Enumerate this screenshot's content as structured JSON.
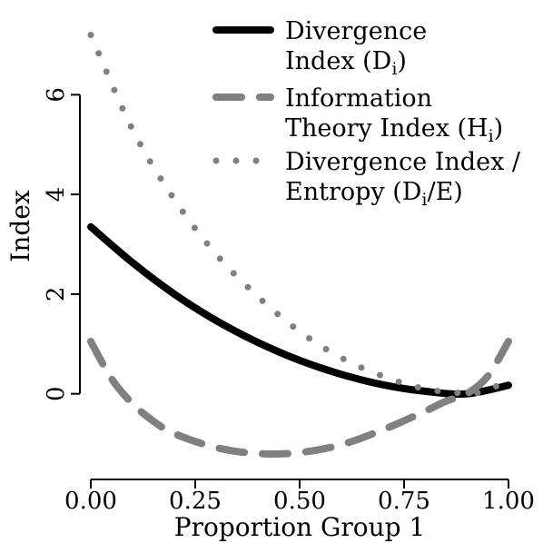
{
  "chart_data": {
    "type": "line",
    "xlabel": "Proportion Group 1",
    "ylabel": "Index",
    "xlim": [
      0.0,
      1.0
    ],
    "ylim": [
      -1.5,
      7.5
    ],
    "xticks": [
      0.0,
      0.25,
      0.5,
      0.75,
      1.0
    ],
    "xtick_labels": [
      "0.00",
      "0.25",
      "0.50",
      "0.75",
      "1.00"
    ],
    "yticks": [
      0,
      2,
      4,
      6
    ],
    "ytick_labels": [
      "0",
      "2",
      "4",
      "6"
    ],
    "legend_position": "top-right",
    "series": [
      {
        "label_lines": [
          "Divergence",
          "Index (D",
          "i",
          ")"
        ],
        "style": "solid",
        "color": "#000000",
        "x": [
          0.0,
          0.1,
          0.2,
          0.3,
          0.4,
          0.5,
          0.6,
          0.7,
          0.8,
          0.9,
          1.0
        ],
        "y": [
          3.35,
          2.63,
          2.0,
          1.47,
          1.03,
          0.67,
          0.39,
          0.18,
          0.05,
          0.0,
          0.17
        ]
      },
      {
        "label_lines": [
          "Information",
          "Theory Index (H",
          "i",
          ")"
        ],
        "style": "dashed",
        "color": "#808080",
        "x": [
          0.0,
          0.05,
          0.1,
          0.15,
          0.2,
          0.3,
          0.4,
          0.5,
          0.6,
          0.7,
          0.8,
          0.85,
          0.9,
          0.95,
          1.0
        ],
        "y": [
          1.05,
          0.3,
          -0.2,
          -0.55,
          -0.8,
          -1.08,
          -1.2,
          -1.18,
          -1.02,
          -0.72,
          -0.35,
          -0.15,
          0.0,
          0.35,
          1.05
        ]
      },
      {
        "label_lines": [
          "Divergence Index /",
          "Entropy (D",
          "i",
          "/E)"
        ],
        "style": "dotted",
        "color": "#808080",
        "x": [
          0.0,
          0.1,
          0.2,
          0.3,
          0.4,
          0.5,
          0.6,
          0.7,
          0.8,
          0.9,
          0.95,
          1.0
        ],
        "y": [
          7.2,
          5.3,
          3.9,
          2.8,
          1.95,
          1.25,
          0.72,
          0.35,
          0.1,
          0.01,
          0.07,
          0.3
        ]
      }
    ]
  }
}
